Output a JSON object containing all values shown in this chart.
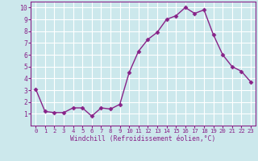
{
  "x": [
    0,
    1,
    2,
    3,
    4,
    5,
    6,
    7,
    8,
    9,
    10,
    11,
    12,
    13,
    14,
    15,
    16,
    17,
    18,
    19,
    20,
    21,
    22,
    23
  ],
  "y": [
    3.1,
    1.2,
    1.1,
    1.1,
    1.5,
    1.5,
    0.8,
    1.5,
    1.4,
    1.8,
    4.5,
    6.3,
    7.3,
    7.9,
    9.0,
    9.3,
    10.0,
    9.5,
    9.8,
    7.7,
    6.0,
    5.0,
    4.6,
    3.7
  ],
  "line_color": "#882288",
  "marker": "D",
  "markersize": 2.5,
  "linewidth": 1.0,
  "xlabel": "Windchill (Refroidissement éolien,°C)",
  "xlim": [
    -0.5,
    23.5
  ],
  "ylim": [
    0,
    10.5
  ],
  "xticks": [
    0,
    1,
    2,
    3,
    4,
    5,
    6,
    7,
    8,
    9,
    10,
    11,
    12,
    13,
    14,
    15,
    16,
    17,
    18,
    19,
    20,
    21,
    22,
    23
  ],
  "yticks": [
    1,
    2,
    3,
    4,
    5,
    6,
    7,
    8,
    9,
    10
  ],
  "bg_color": "#cce8ec",
  "grid_color": "#ffffff",
  "tick_color": "#882288",
  "label_color": "#882288",
  "font_family": "monospace",
  "xlabel_fontsize": 5.8,
  "tick_fontsize_x": 5.2,
  "tick_fontsize_y": 5.8
}
